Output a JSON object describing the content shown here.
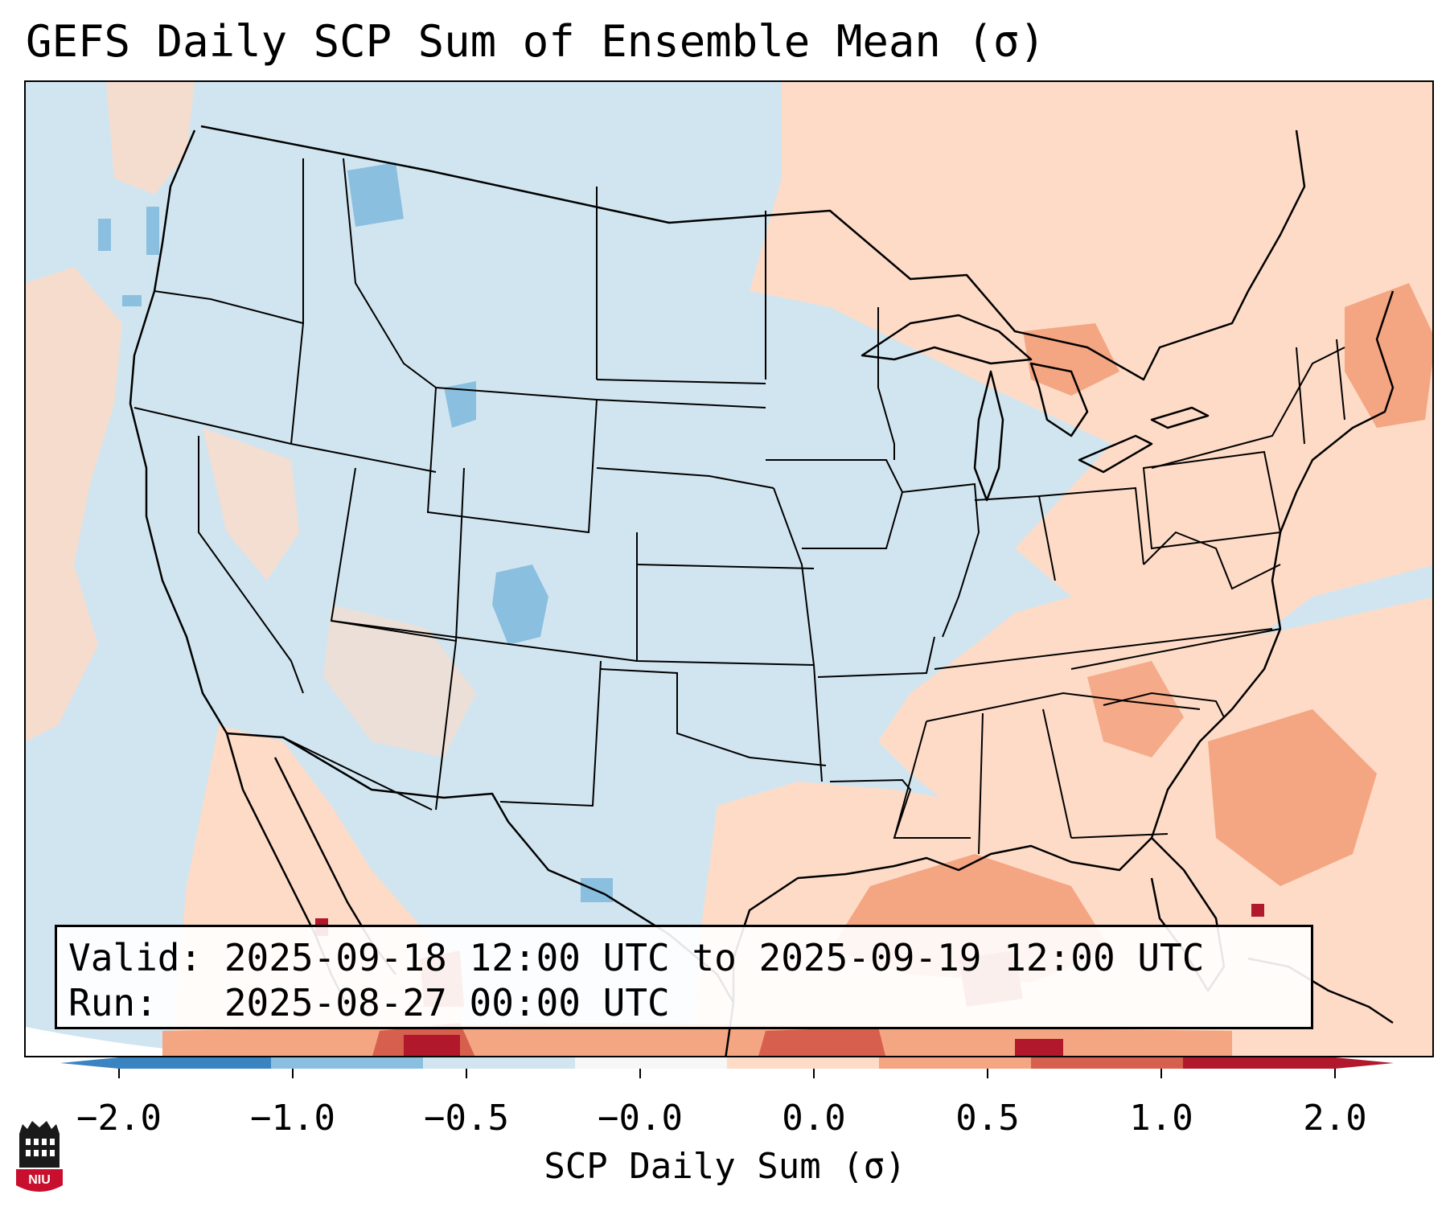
{
  "title": "GEFS Daily SCP Sum of Ensemble Mean (σ)",
  "info_box": {
    "valid_line": "Valid: 2025-09-18 12:00 UTC to 2025-09-19 12:00 UTC",
    "run_line": "Run:   2025-08-27 00:00 UTC"
  },
  "colorbar": {
    "label": "SCP Daily Sum (σ)",
    "ticks": [
      "−2.0",
      "−1.0",
      "−0.5",
      "−0.0",
      "0.0",
      "0.5",
      "1.0",
      "2.0"
    ],
    "segment_colors": [
      "#3a84c1",
      "#8bbfdf",
      "#d1e5f0",
      "#f7f7f7",
      "#fddbc7",
      "#f4a582",
      "#d6604d",
      "#b2182b"
    ],
    "extend": "both"
  },
  "map": {
    "domain": "Contiguous United States, southern Canada, northern Mexico, Gulf of Mexico",
    "projection": "Lambert conformal",
    "base_color": "#d1e5f0",
    "anomaly_colors": {
      "minus_1_0": "#8bbfdf",
      "plus_0_0": "#fddbc7",
      "plus_0_5": "#f4a582",
      "plus_1_0": "#d6604d",
      "plus_2_0": "#b2182b"
    }
  },
  "logo": {
    "text": "NIU",
    "color": "#c8102e"
  }
}
